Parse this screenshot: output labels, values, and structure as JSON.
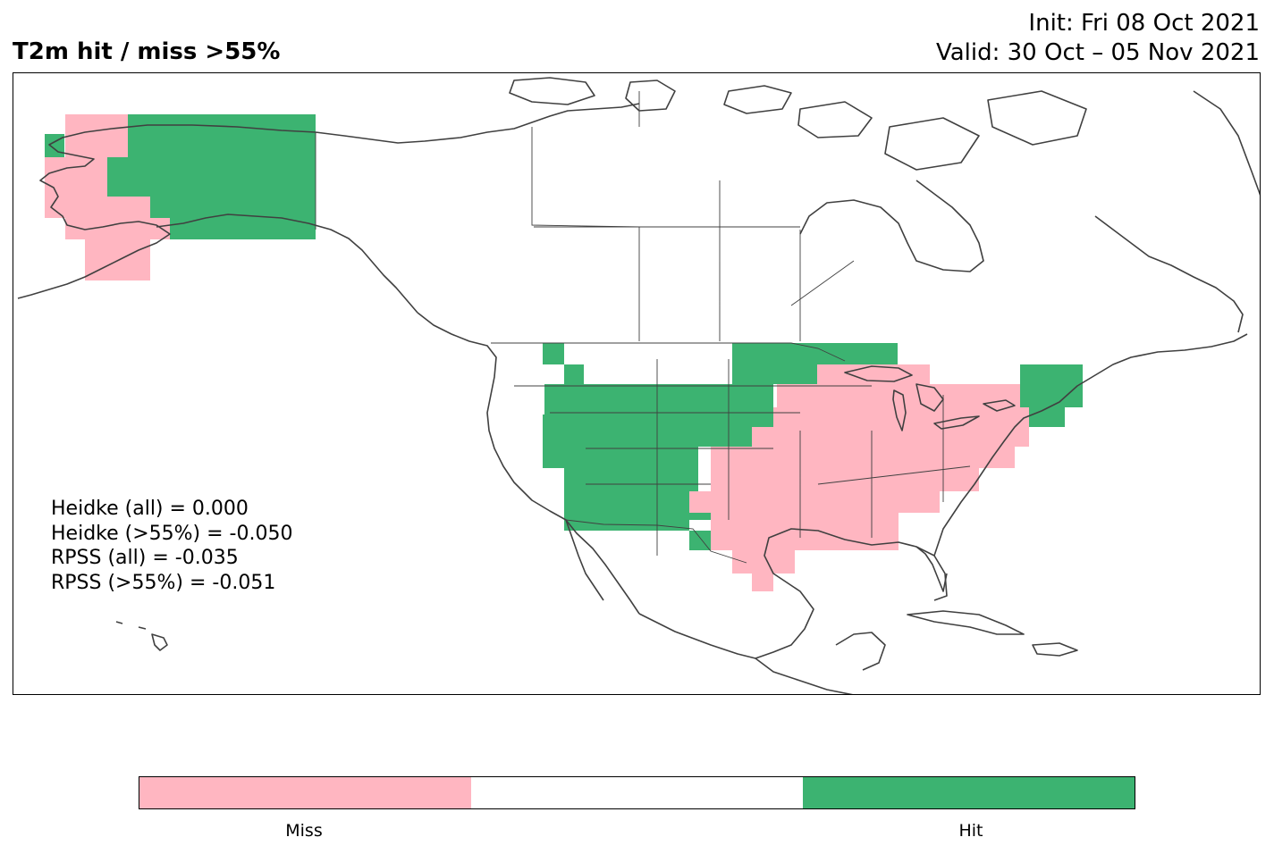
{
  "title": "T2m hit / miss  >55%",
  "init": "Init: Fri 08 Oct 2021",
  "valid": "Valid: 30 Oct – 05 Nov 2021",
  "stats": [
    "Heidke (all) = 0.000",
    "Heidke (>55%) = -0.050",
    "RPSS (all) = -0.035",
    "RPSS (>55%) = -0.051"
  ],
  "colors": {
    "miss": "#FFB6C1",
    "hit": "#3CB371",
    "neutral": "#FFFFFF",
    "coast": "#404040"
  },
  "legend": {
    "miss_label": "Miss",
    "hit_label": "Hit"
  }
}
